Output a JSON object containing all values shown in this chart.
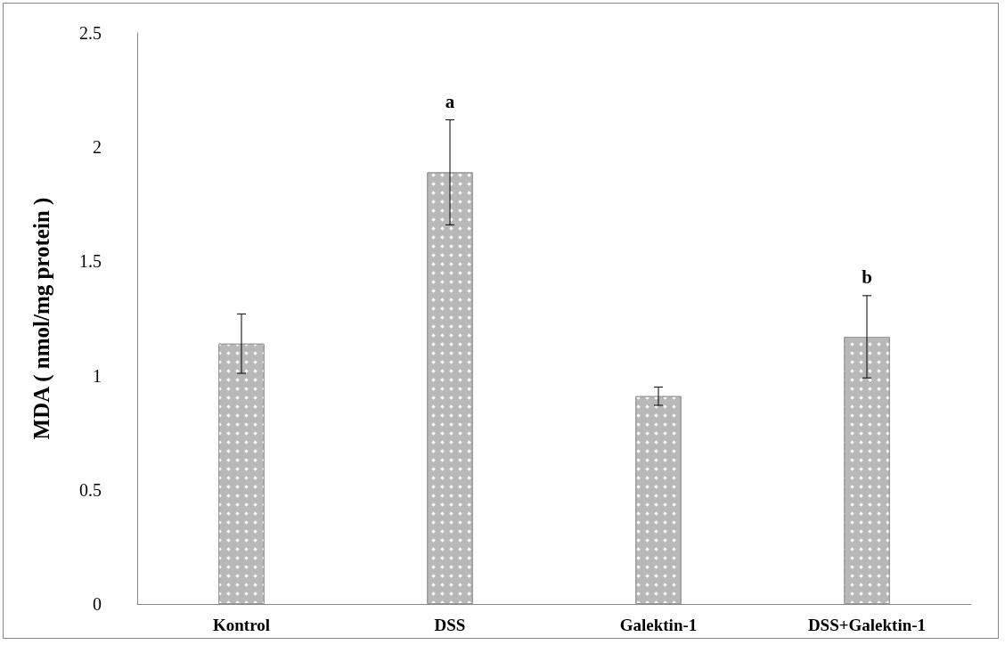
{
  "chart_data": {
    "type": "bar",
    "ylabel": "MDA ( nmol/mg protein )",
    "categories": [
      "Kontrol",
      "DSS",
      "Galektin-1",
      "DSS+Galektin-1"
    ],
    "values": [
      1.14,
      1.89,
      0.91,
      1.17
    ],
    "errors": [
      0.13,
      0.23,
      0.04,
      0.18
    ],
    "color": "#b8b8b8",
    "ylim": [
      0,
      2.5
    ],
    "yticks": [
      0,
      0.5,
      1,
      1.5,
      2,
      2.5
    ],
    "grid": false,
    "annotations": [
      {
        "text": "a",
        "x": "DSS",
        "y": 2.12
      },
      {
        "text": "b",
        "x": "DSS+Galektin-1",
        "y": 1.35
      }
    ]
  }
}
